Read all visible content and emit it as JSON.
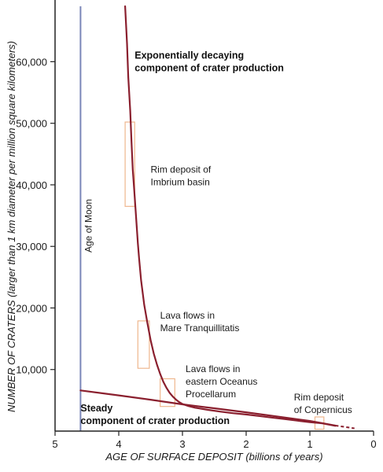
{
  "chart_data": {
    "type": "line",
    "title": "",
    "xlabel": "AGE OF SURFACE DEPOSIT (billions of years)",
    "ylabel": "NUMBER OF CRATERS (larger than 1 km diameter per million square kilometers)",
    "x_reversed": true,
    "xlim": [
      5,
      0
    ],
    "ylim": [
      0,
      69000
    ],
    "x_ticks": [
      5,
      4,
      3,
      2,
      1,
      0
    ],
    "x_tick_labels": [
      "5",
      "4",
      "3",
      "2",
      "1",
      "0"
    ],
    "y_ticks": [
      10000,
      20000,
      30000,
      40000,
      50000,
      60000
    ],
    "y_tick_labels": [
      "10,000",
      "20,000",
      "30,000",
      "40,000",
      "50,000",
      "60,000"
    ],
    "grid": false,
    "line_color": "#8a1f2e",
    "box_color": "#efb78e",
    "moon_line_color": "#7a86b8",
    "moon_age": 4.6,
    "moon_label": "Age of Moon",
    "series": [
      {
        "name": "",
        "x": [
          3.9,
          3.87,
          3.85,
          3.82,
          3.8,
          3.78,
          3.75,
          3.72,
          3.7,
          3.68,
          3.65,
          3.6,
          3.55,
          3.5,
          3.45,
          3.4,
          3.35,
          3.3,
          3.25,
          3.2,
          3.15,
          3.1,
          3.05,
          3.0,
          2.9,
          2.8,
          2.6,
          2.4,
          2.2,
          2.0,
          1.8,
          1.6,
          1.4,
          1.2,
          1.0,
          0.8,
          0.6
        ],
        "y": [
          69000,
          63000,
          57500,
          52000,
          47000,
          42500,
          38000,
          33500,
          30500,
          28000,
          24500,
          20500,
          17500,
          14800,
          12600,
          10800,
          9300,
          8000,
          7000,
          6200,
          5600,
          5100,
          4700,
          4400,
          4050,
          3800,
          3450,
          3150,
          2900,
          2700,
          2450,
          2200,
          1950,
          1700,
          1450,
          1250,
          850
        ]
      },
      {
        "name": "",
        "x": [
          4.6,
          4.0,
          3.5,
          3.0,
          2.5,
          2.0,
          1.5,
          1.0,
          0.6
        ],
        "y": [
          6600,
          5800,
          5100,
          4350,
          3700,
          3050,
          2350,
          1650,
          900
        ]
      }
    ],
    "dashed_extension": {
      "x": [
        0.6,
        0.3
      ],
      "y": [
        900,
        450
      ]
    },
    "annotations": [
      {
        "lines": [
          "Exponentially decaying",
          "component of crater production"
        ],
        "bold": true,
        "x": 3.75,
        "y": 60500
      },
      {
        "lines": [
          "Rim deposit of",
          "Imbrium basin"
        ],
        "bold": false,
        "x": 3.5,
        "y": 42000
      },
      {
        "lines": [
          "Lava flows in",
          "Mare Tranquillitatis"
        ],
        "bold": false,
        "x": 3.35,
        "y": 18300
      },
      {
        "lines": [
          "Lava flows in",
          "eastern Oceanus",
          "Procellarum"
        ],
        "bold": false,
        "x": 2.95,
        "y": 9600
      },
      {
        "lines": [
          "Rim deposit",
          "of Copernicus"
        ],
        "bold": false,
        "x": 1.25,
        "y": 5000
      },
      {
        "lines": [
          "Steady",
          "component of crater production"
        ],
        "bold": true,
        "x": 4.6,
        "y": 3200
      }
    ],
    "boxes": [
      {
        "label": "Imbrium",
        "x0": 3.9,
        "x1": 3.75,
        "y0": 36500,
        "y1": 50200
      },
      {
        "label": "Tranquillitatis",
        "x0": 3.7,
        "x1": 3.52,
        "y0": 10200,
        "y1": 17900
      },
      {
        "label": "Procellarum",
        "x0": 3.35,
        "x1": 3.12,
        "y0": 4000,
        "y1": 8500
      },
      {
        "label": "Copernicus",
        "x0": 0.92,
        "x1": 0.78,
        "y0": 300,
        "y1": 2300
      }
    ]
  }
}
